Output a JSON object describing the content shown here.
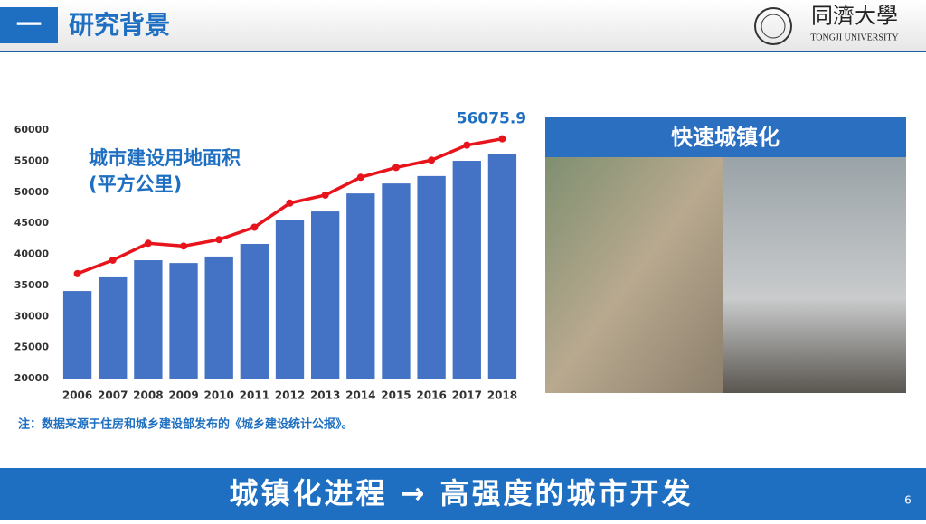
{
  "header": {
    "number": "一",
    "title": "研究背景",
    "logo_name": "同濟大學",
    "logo_sub": "TONGJI UNIVERSITY"
  },
  "chart_data": {
    "type": "bar",
    "annotations": [
      "城市建设用地面积",
      "(平方公里)"
    ],
    "categories": [
      "2006",
      "2007",
      "2008",
      "2009",
      "2010",
      "2011",
      "2012",
      "2013",
      "2014",
      "2015",
      "2016",
      "2017",
      "2018"
    ],
    "series": [
      {
        "type": "bar",
        "color": "#4472c4",
        "values": [
          34100,
          36300,
          39050,
          38600,
          39650,
          41670,
          45600,
          46900,
          49800,
          51400,
          52600,
          55050,
          56075.9
        ]
      },
      {
        "type": "line",
        "axis": "y2",
        "color": "#e8141c",
        "values": [
          34100,
          36300,
          39050,
          38600,
          39650,
          41670,
          45600,
          46900,
          49800,
          51400,
          52600,
          55050,
          56075.9
        ]
      }
    ],
    "ylim": [
      20000,
      60000
    ],
    "yticks": [
      20000,
      25000,
      30000,
      35000,
      40000,
      45000,
      50000,
      55000,
      60000
    ],
    "y2lim": [
      17000,
      57500
    ]
  },
  "photo": {
    "caption": "快速城镇化"
  },
  "note": "注：数据来源于住房和城乡建设部发布的《城乡建设统计公报》。",
  "footer": {
    "text": "城镇化进程 → 高强度的城市开发",
    "page": "6"
  }
}
